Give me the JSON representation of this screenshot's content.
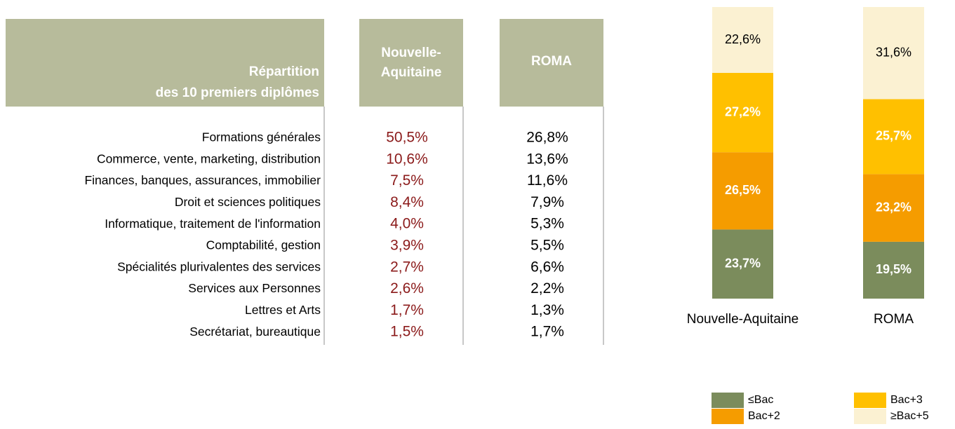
{
  "table": {
    "header": [
      [
        "Répartition",
        "des 10 premiers diplômes"
      ],
      [
        "Nouvelle-",
        "Aquitaine"
      ],
      [
        "ROMA"
      ]
    ],
    "rows": [
      [
        "Formations générales",
        "50,5%",
        "26,8%"
      ],
      [
        "Commerce, vente, marketing, distribution",
        "10,6%",
        "13,6%"
      ],
      [
        "Finances, banques, assurances, immobilier",
        "7,5%",
        "11,6%"
      ],
      [
        "Droit et sciences politiques",
        "8,4%",
        "7,9%"
      ],
      [
        "Informatique, traitement de l'information",
        "4,0%",
        "5,3%"
      ],
      [
        "Comptabilité, gestion",
        "3,9%",
        "5,5%"
      ],
      [
        "Spécialités plurivalentes des services",
        "2,7%",
        "6,6%"
      ],
      [
        "Services aux Personnes",
        "2,6%",
        "2,2%"
      ],
      [
        "Lettres et Arts",
        "1,7%",
        "1,3%"
      ],
      [
        "Secrétariat, bureautique",
        "1,5%",
        "1,7%"
      ]
    ]
  },
  "chart_data": {
    "type": "stacked-bar",
    "categories": [
      "Nouvelle-Aquitaine",
      "ROMA"
    ],
    "ylim": [
      0,
      100
    ],
    "series": [
      {
        "name": "≤Bac",
        "color": "#7b8c5c",
        "values": [
          23.7,
          19.5
        ],
        "value_labels": [
          "23,7%",
          "19,5%"
        ]
      },
      {
        "name": "Bac+2",
        "color": "#f59c00",
        "values": [
          26.5,
          23.2
        ],
        "value_labels": [
          "26,5%",
          "23,2%"
        ]
      },
      {
        "name": "Bac+3",
        "color": "#ffc000",
        "values": [
          27.2,
          25.7
        ],
        "value_labels": [
          "27,2%",
          "25,7%"
        ]
      },
      {
        "name": "≥Bac+5",
        "color": "#fbf1d2",
        "values": [
          22.6,
          31.6
        ],
        "value_labels": [
          "22,6%",
          "31,6%"
        ]
      }
    ]
  }
}
